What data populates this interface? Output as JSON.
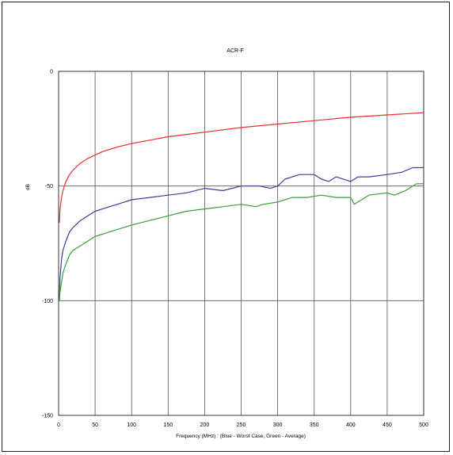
{
  "chart_data": {
    "type": "line",
    "title": "ACR-F",
    "xlabel": "Frequency (MHz) : (Blue - Worst Case, Green - Average)",
    "ylabel": "dB",
    "xlim": [
      0,
      500
    ],
    "ylim": [
      -150,
      0
    ],
    "xticks": [
      "0",
      "50",
      "100",
      "150",
      "200",
      "250",
      "300",
      "350",
      "400",
      "450",
      "500"
    ],
    "yticks": [
      "0",
      "-50",
      "-100",
      "-150"
    ],
    "grid": true,
    "series": [
      {
        "color": "#e8322e",
        "x": [
          1,
          2,
          4,
          6,
          10,
          15,
          20,
          30,
          40,
          50,
          60,
          80,
          100,
          125,
          150,
          175,
          200,
          250,
          300,
          350,
          400,
          450,
          500
        ],
        "y": [
          -66,
          -60,
          -55,
          -52,
          -48,
          -45,
          -43,
          -40,
          -38,
          -36.5,
          -35,
          -33,
          -31.5,
          -30,
          -28.5,
          -27.5,
          -26.5,
          -24.5,
          -23,
          -21.5,
          -20,
          -19,
          -18
        ]
      },
      {
        "color": "#3a3f9e",
        "x": [
          1,
          2,
          4,
          6,
          10,
          15,
          20,
          30,
          40,
          50,
          60,
          80,
          100,
          125,
          150,
          175,
          200,
          225,
          250,
          275,
          290,
          300,
          310,
          330,
          350,
          360,
          370,
          380,
          400,
          410,
          425,
          450,
          470,
          485,
          500
        ],
        "y": [
          -100,
          -90,
          -82,
          -78,
          -74,
          -70,
          -68,
          -65,
          -63,
          -61,
          -60,
          -58,
          -56,
          -55,
          -54,
          -53,
          -51,
          -52,
          -50,
          -50,
          -51,
          -50,
          -47,
          -45,
          -45,
          -47,
          -48,
          -46,
          -48,
          -46,
          -46,
          -45,
          -44,
          -42,
          -42
        ]
      },
      {
        "color": "#3a9e3a",
        "x": [
          1,
          2,
          4,
          6,
          10,
          15,
          20,
          30,
          40,
          50,
          60,
          80,
          100,
          125,
          150,
          175,
          200,
          225,
          250,
          270,
          280,
          300,
          320,
          340,
          360,
          380,
          400,
          405,
          410,
          425,
          450,
          460,
          475,
          490,
          500
        ],
        "y": [
          -100,
          -96,
          -92,
          -88,
          -84,
          -80,
          -78,
          -76,
          -74,
          -72,
          -71,
          -69,
          -67,
          -65,
          -63,
          -61,
          -60,
          -59,
          -58,
          -59,
          -58,
          -57,
          -55,
          -55,
          -54,
          -55,
          -55,
          -58,
          -57,
          -54,
          -53,
          -54,
          -52,
          -49,
          -49
        ]
      }
    ]
  }
}
